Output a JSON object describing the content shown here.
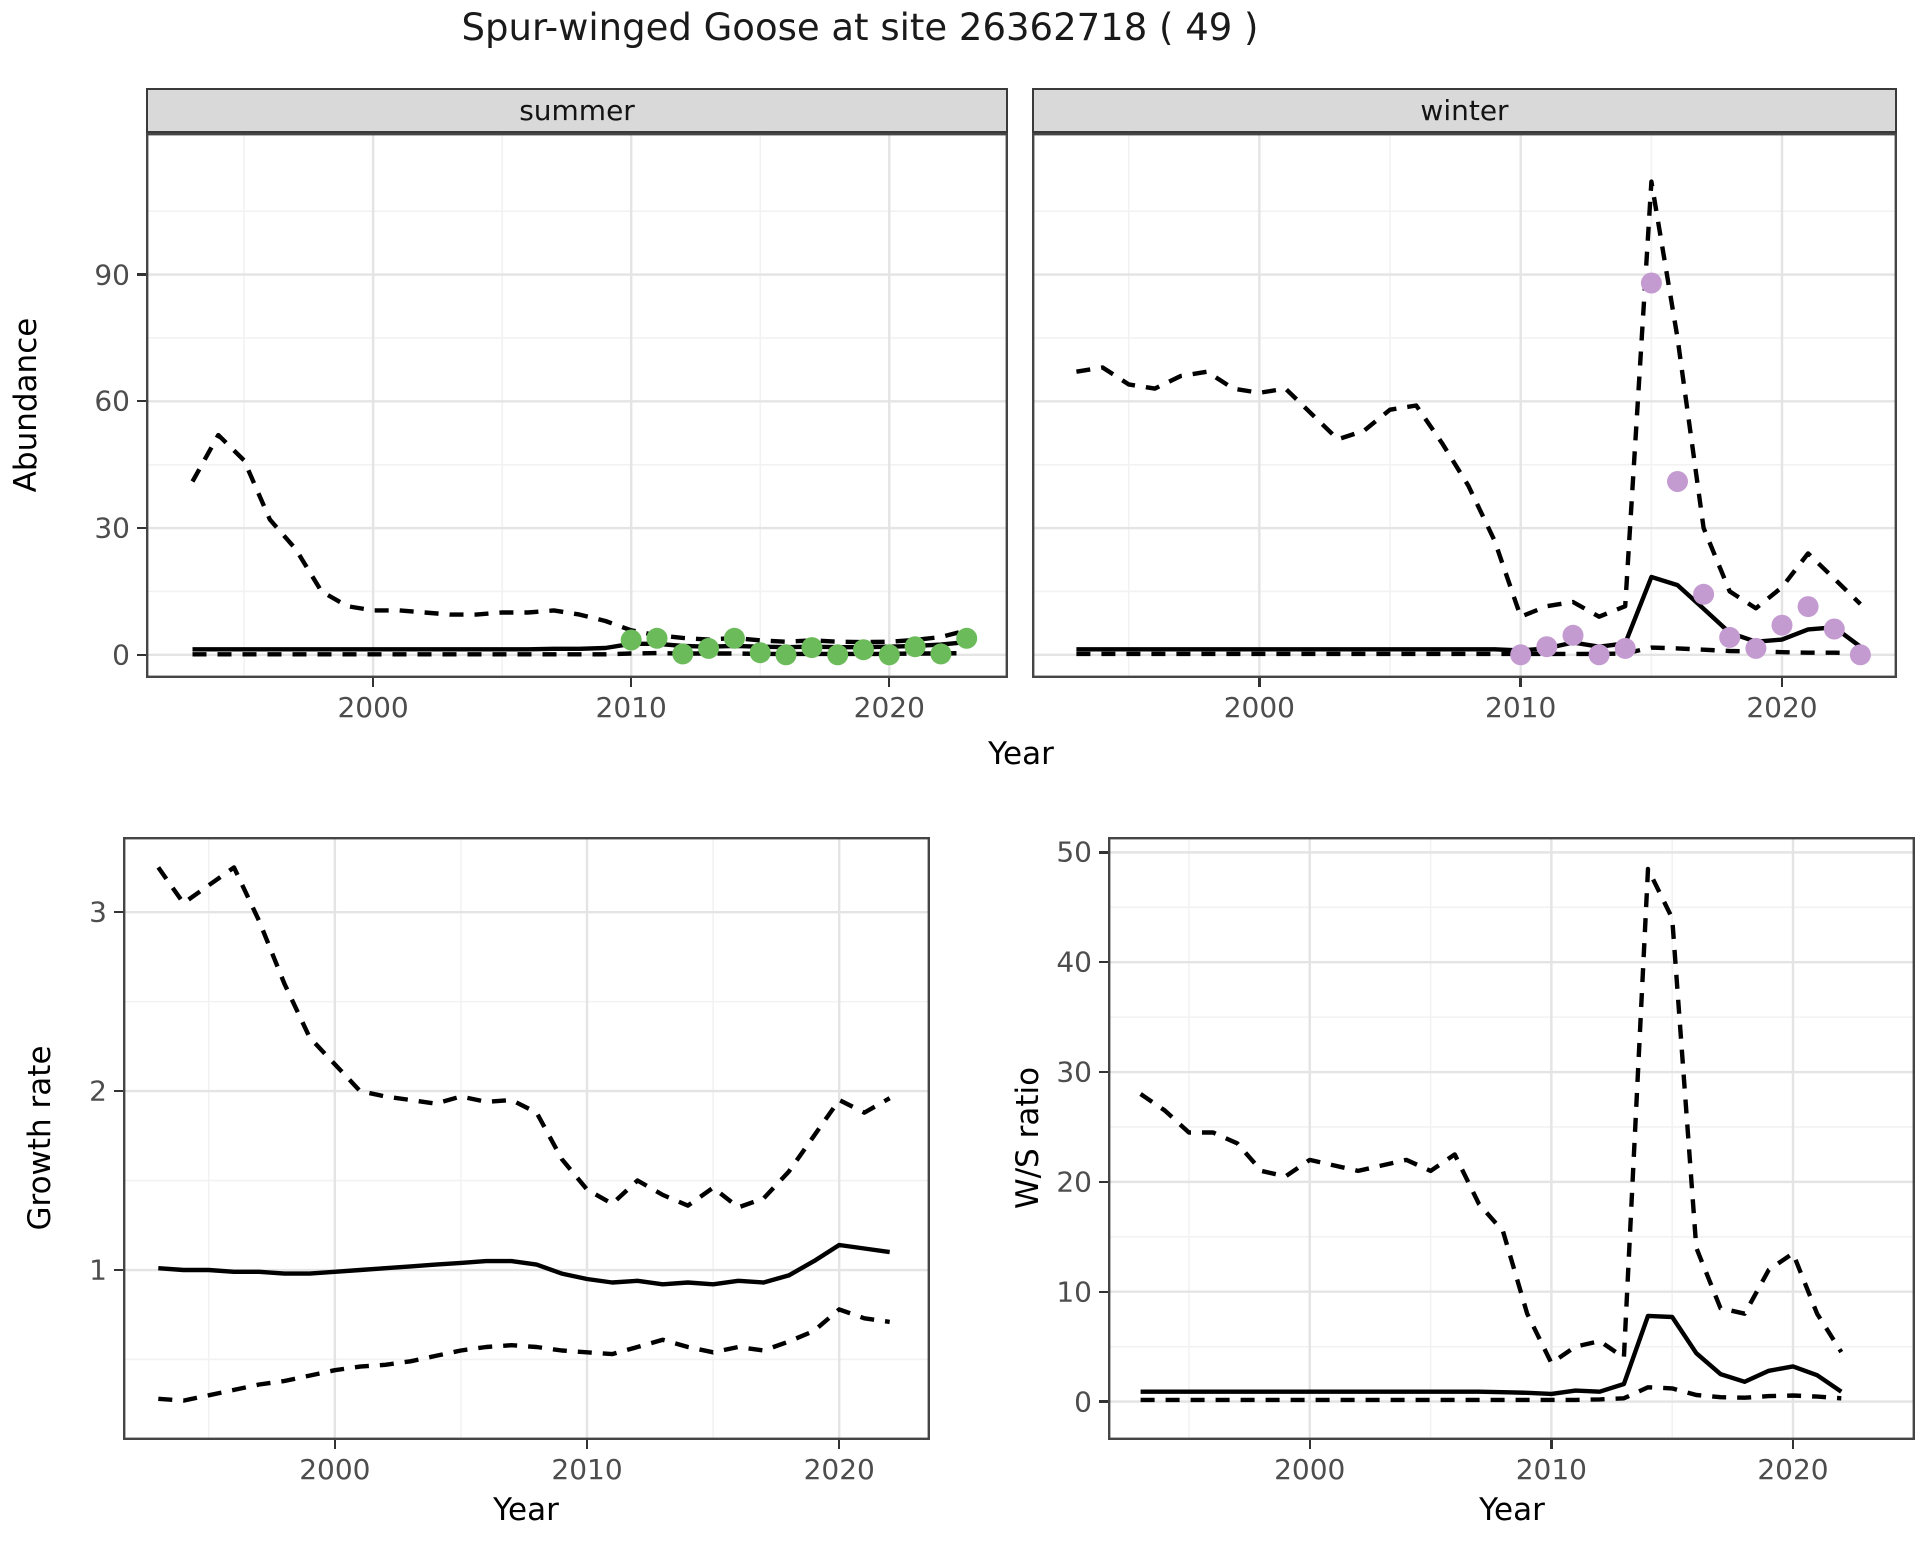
{
  "title": "Spur-winged Goose at site 26362718 ( 49 )",
  "axes": {
    "x_label": "Year"
  },
  "colors": {
    "line": "#000000",
    "observed_summer": "#6cbb5a",
    "observed_winter": "#c49bd1",
    "strip_background": "#d9d9d9",
    "tick_text": "#4d4d4d"
  },
  "chart_data": [
    {
      "panel": "abundance-summer",
      "type": "line",
      "facet": "summer",
      "ylabel": "Abundance",
      "xlabel": "Year",
      "x_domain": [
        1991.2,
        2024.6
      ],
      "y_domain": [
        -5.5,
        123.5
      ],
      "x_ticks": [
        2000,
        2010,
        2020
      ],
      "x_minor": [
        1995,
        2005,
        2015
      ],
      "y_ticks": [
        0,
        30,
        60,
        90
      ],
      "y_minor": [
        15,
        45,
        75,
        105
      ],
      "x": [
        1993,
        1994,
        1995,
        1996,
        1997,
        1998,
        1999,
        2000,
        2001,
        2002,
        2003,
        2004,
        2005,
        2006,
        2007,
        2008,
        2009,
        2010,
        2011,
        2012,
        2013,
        2014,
        2015,
        2016,
        2017,
        2018,
        2019,
        2020,
        2021,
        2022,
        2023
      ],
      "series": [
        {
          "name": "upper-ci",
          "style": "dashed",
          "values": [
            41,
            52,
            46,
            32,
            25,
            15,
            11.5,
            10.5,
            10.5,
            10,
            9.5,
            9.5,
            10,
            10,
            10.5,
            9.5,
            8,
            5.8,
            4.6,
            4.0,
            3.6,
            4.0,
            3.4,
            3.1,
            3.4,
            3.1,
            3.0,
            3.1,
            3.5,
            4.2,
            5.8
          ]
        },
        {
          "name": "lower-ci",
          "style": "dashed",
          "values": [
            0.1,
            0.1,
            0.1,
            0.1,
            0.1,
            0.1,
            0.1,
            0.1,
            0.1,
            0.1,
            0.1,
            0.1,
            0.1,
            0.1,
            0.1,
            0.1,
            0.1,
            0.3,
            0.4,
            0.3,
            0.3,
            0.3,
            0.2,
            0.2,
            0.2,
            0.2,
            0.2,
            0.2,
            0.3,
            0.3,
            0.4
          ]
        },
        {
          "name": "median-fit",
          "style": "solid",
          "values": [
            1.3,
            1.3,
            1.3,
            1.3,
            1.3,
            1.3,
            1.3,
            1.3,
            1.3,
            1.3,
            1.3,
            1.3,
            1.3,
            1.3,
            1.4,
            1.4,
            1.6,
            2.6,
            2.6,
            2.1,
            1.9,
            2.1,
            1.9,
            1.8,
            1.9,
            1.8,
            1.8,
            1.9,
            2.1,
            2.4,
            3.0
          ]
        }
      ],
      "points": {
        "name": "observed-summer-counts",
        "color": "#6cbb5a",
        "x": [
          2010,
          2011,
          2012,
          2013,
          2014,
          2015,
          2016,
          2017,
          2018,
          2019,
          2020,
          2021,
          2022,
          2023
        ],
        "values": [
          3.5,
          3.9,
          0.2,
          1.5,
          3.9,
          0.5,
          0,
          1.7,
          0,
          1.2,
          0,
          1.9,
          0.2,
          3.9
        ]
      }
    },
    {
      "panel": "abundance-winter",
      "type": "line",
      "facet": "winter",
      "ylabel": "Abundance",
      "xlabel": "Year",
      "x_domain": [
        1991.3,
        2024.4
      ],
      "y_domain": [
        -5.5,
        123.5
      ],
      "x_ticks": [
        2000,
        2010,
        2020
      ],
      "x_minor": [
        1995,
        2005,
        2015
      ],
      "y_ticks": [
        0,
        30,
        60,
        90
      ],
      "y_minor": [
        15,
        45,
        75,
        105
      ],
      "x": [
        1993,
        1994,
        1995,
        1996,
        1997,
        1998,
        1999,
        2000,
        2001,
        2002,
        2003,
        2004,
        2005,
        2006,
        2007,
        2008,
        2009,
        2010,
        2011,
        2012,
        2013,
        2014,
        2015,
        2016,
        2017,
        2018,
        2019,
        2020,
        2021,
        2022,
        2023
      ],
      "series": [
        {
          "name": "upper-ci",
          "style": "dashed",
          "values": [
            67,
            68,
            64,
            63,
            66,
            67,
            63,
            62,
            63,
            57,
            51,
            53,
            58,
            59,
            50,
            40,
            27,
            9,
            11.5,
            12.5,
            9,
            11.5,
            112,
            75,
            30,
            15,
            11,
            16,
            24,
            18,
            12
          ]
        },
        {
          "name": "lower-ci",
          "style": "dashed",
          "values": [
            0.2,
            0.2,
            0.2,
            0.2,
            0.2,
            0.2,
            0.2,
            0.2,
            0.2,
            0.2,
            0.2,
            0.2,
            0.2,
            0.2,
            0.2,
            0.2,
            0.2,
            0.2,
            0.2,
            0.2,
            0.2,
            0.3,
            1.7,
            1.5,
            1.2,
            0.9,
            0.8,
            0.6,
            0.5,
            0.5,
            0.4
          ]
        },
        {
          "name": "median-fit",
          "style": "solid",
          "values": [
            1.3,
            1.3,
            1.3,
            1.3,
            1.3,
            1.3,
            1.3,
            1.3,
            1.3,
            1.3,
            1.3,
            1.3,
            1.3,
            1.3,
            1.3,
            1.3,
            1.3,
            1.0,
            1.5,
            2.9,
            1.9,
            2.7,
            18.4,
            16.5,
            10.9,
            5.2,
            3.1,
            3.6,
            6.0,
            6.5,
            1.9
          ]
        }
      ],
      "points": {
        "name": "observed-winter-counts",
        "color": "#c49bd1",
        "x": [
          2010,
          2011,
          2012,
          2013,
          2014,
          2015,
          2016,
          2017,
          2018,
          2019,
          2020,
          2021,
          2022,
          2023
        ],
        "values": [
          0,
          1.9,
          4.6,
          0,
          1.5,
          88,
          41,
          14.3,
          4.1,
          1.5,
          7,
          11.4,
          6.1,
          0
        ]
      }
    },
    {
      "panel": "growth-rate",
      "type": "line",
      "facet": null,
      "ylabel": "Growth rate",
      "xlabel": "Year",
      "x_domain": [
        1991.6,
        2023.6
      ],
      "y_domain": [
        0.05,
        3.42
      ],
      "x_ticks": [
        2000,
        2010,
        2020
      ],
      "x_minor": [
        1995,
        2005,
        2015
      ],
      "y_ticks": [
        1,
        2,
        3
      ],
      "y_minor": [
        0.5,
        1.5,
        2.5
      ],
      "x": [
        1993,
        1994,
        1995,
        1996,
        1997,
        1998,
        1999,
        2000,
        2001,
        2002,
        2003,
        2004,
        2005,
        2006,
        2007,
        2008,
        2009,
        2010,
        2011,
        2012,
        2013,
        2014,
        2015,
        2016,
        2017,
        2018,
        2019,
        2020,
        2021,
        2022
      ],
      "series": [
        {
          "name": "upper-ci",
          "style": "dashed",
          "values": [
            3.25,
            3.05,
            3.15,
            3.25,
            2.95,
            2.6,
            2.3,
            2.15,
            2.0,
            1.97,
            1.95,
            1.93,
            1.97,
            1.94,
            1.95,
            1.88,
            1.62,
            1.45,
            1.37,
            1.5,
            1.42,
            1.36,
            1.46,
            1.35,
            1.4,
            1.55,
            1.75,
            1.95,
            1.88,
            1.96
          ]
        },
        {
          "name": "lower-ci",
          "style": "dashed",
          "values": [
            0.28,
            0.27,
            0.3,
            0.33,
            0.36,
            0.38,
            0.41,
            0.44,
            0.46,
            0.47,
            0.49,
            0.52,
            0.55,
            0.57,
            0.58,
            0.57,
            0.55,
            0.54,
            0.53,
            0.57,
            0.61,
            0.57,
            0.54,
            0.57,
            0.55,
            0.6,
            0.66,
            0.78,
            0.73,
            0.71
          ]
        },
        {
          "name": "median-fit",
          "style": "solid",
          "values": [
            1.01,
            1.0,
            1.0,
            0.99,
            0.99,
            0.98,
            0.98,
            0.99,
            1.0,
            1.01,
            1.02,
            1.03,
            1.04,
            1.05,
            1.05,
            1.03,
            0.98,
            0.95,
            0.93,
            0.94,
            0.92,
            0.93,
            0.92,
            0.94,
            0.93,
            0.97,
            1.05,
            1.14,
            1.12,
            1.1
          ]
        }
      ],
      "points": null
    },
    {
      "panel": "ws-ratio",
      "type": "line",
      "facet": null,
      "ylabel": "W/S ratio",
      "xlabel": "Year",
      "x_domain": [
        1991.65,
        2025.05
      ],
      "y_domain": [
        -3.5,
        51.4
      ],
      "x_ticks": [
        2000,
        2010,
        2020
      ],
      "x_minor": [
        1995,
        2005,
        2015
      ],
      "y_ticks": [
        0,
        10,
        20,
        30,
        40,
        50
      ],
      "y_minor": [
        5,
        15,
        25,
        35,
        45
      ],
      "x": [
        1993,
        1994,
        1995,
        1996,
        1997,
        1998,
        1999,
        2000,
        2001,
        2002,
        2003,
        2004,
        2005,
        2006,
        2007,
        2008,
        2009,
        2010,
        2011,
        2012,
        2013,
        2014,
        2015,
        2016,
        2017,
        2018,
        2019,
        2020,
        2021,
        2022
      ],
      "series": [
        {
          "name": "upper-ci",
          "style": "dashed",
          "values": [
            28,
            26.5,
            24.5,
            24.5,
            23.5,
            21,
            20.5,
            22,
            21.5,
            21,
            21.5,
            22,
            21,
            22.5,
            18,
            15.5,
            8,
            3.5,
            5,
            5.5,
            4,
            48.5,
            44,
            14,
            8.5,
            8,
            12,
            13.5,
            8,
            4.5
          ]
        },
        {
          "name": "lower-ci",
          "style": "dashed",
          "values": [
            0.15,
            0.15,
            0.15,
            0.15,
            0.15,
            0.15,
            0.15,
            0.15,
            0.15,
            0.15,
            0.15,
            0.15,
            0.15,
            0.15,
            0.15,
            0.15,
            0.15,
            0.15,
            0.15,
            0.2,
            0.3,
            1.3,
            1.2,
            0.6,
            0.4,
            0.35,
            0.5,
            0.55,
            0.45,
            0.3
          ]
        },
        {
          "name": "median-fit",
          "style": "solid",
          "values": [
            0.9,
            0.9,
            0.9,
            0.9,
            0.9,
            0.9,
            0.9,
            0.9,
            0.9,
            0.9,
            0.9,
            0.9,
            0.9,
            0.9,
            0.9,
            0.85,
            0.8,
            0.7,
            1.0,
            0.9,
            1.6,
            7.8,
            7.7,
            4.4,
            2.5,
            1.8,
            2.8,
            3.2,
            2.4,
            0.9
          ]
        }
      ],
      "points": null
    }
  ]
}
